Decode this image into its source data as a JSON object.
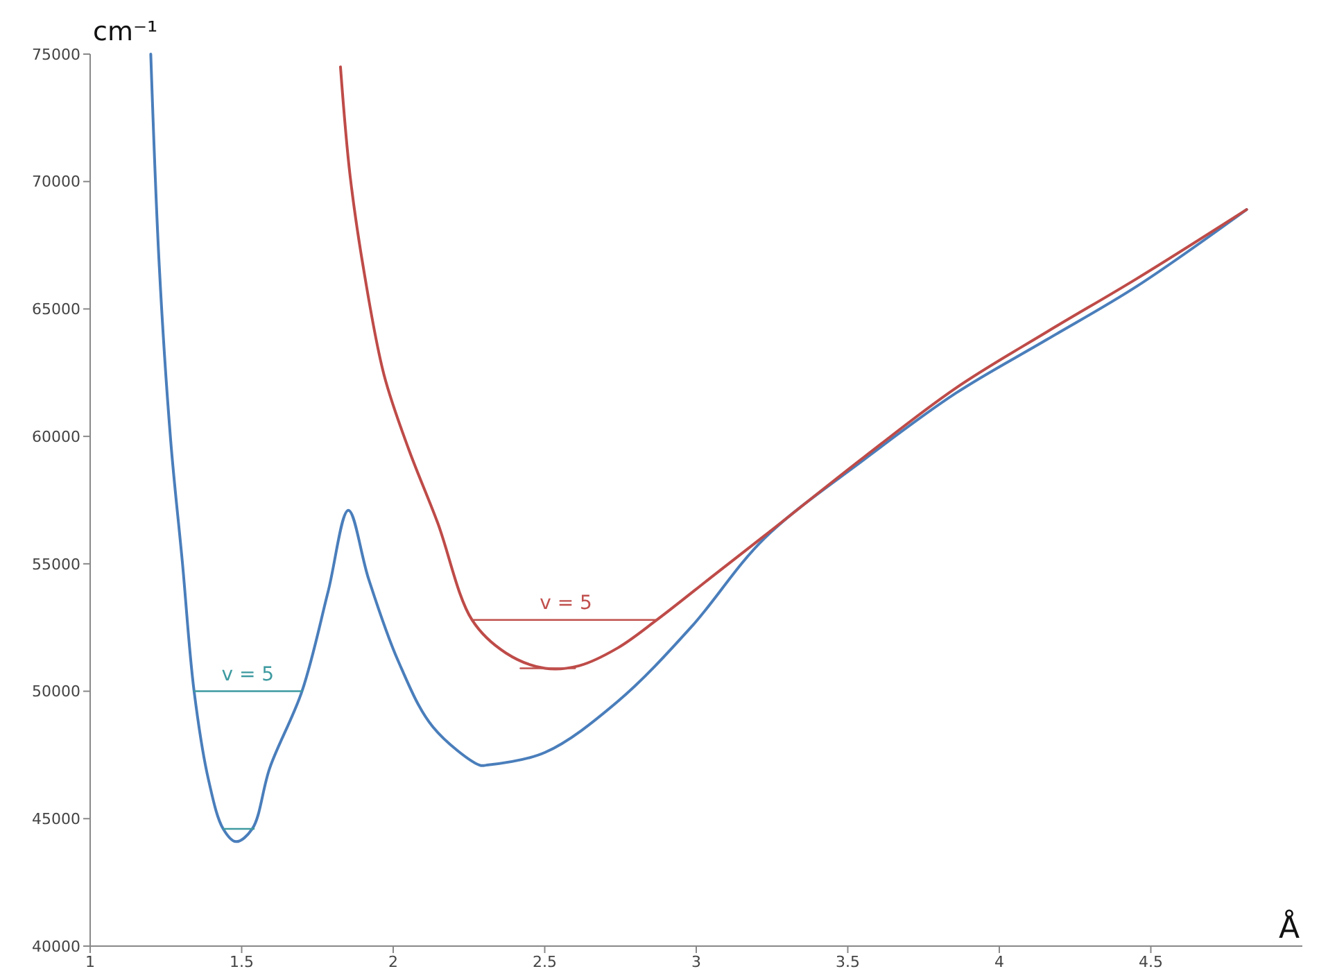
{
  "chart_data": {
    "type": "line",
    "xlabel": "Å",
    "ylabel": "cm⁻¹",
    "xlim": [
      1,
      5
    ],
    "ylim": [
      40000,
      75000
    ],
    "xticks": [
      1,
      1.5,
      2,
      2.5,
      3,
      3.5,
      4,
      4.5
    ],
    "yticks": [
      40000,
      45000,
      50000,
      55000,
      60000,
      65000,
      70000,
      75000
    ],
    "grid": false,
    "marker": "none",
    "line_style": "solid",
    "series": [
      {
        "color": "#4a7ebb",
        "x": [
          1.2,
          1.228,
          1.266,
          1.304,
          1.343,
          1.391,
          1.439,
          1.481,
          1.535,
          1.593,
          1.699,
          1.785,
          1.852,
          1.919,
          2.016,
          2.131,
          2.285,
          2.308,
          2.501,
          2.741,
          2.982,
          3.225,
          3.555,
          3.857,
          4.157,
          4.455,
          4.816
        ],
        "values": [
          75000,
          66700,
          59800,
          55100,
          50000,
          46500,
          44600,
          44100,
          44600,
          47000,
          50000,
          53900,
          57100,
          54400,
          51200,
          48600,
          47100,
          47100,
          47600,
          49600,
          52500,
          56000,
          59100,
          61700,
          63800,
          65900,
          68900
        ]
      },
      {
        "color": "#be4b48",
        "x": [
          1.826,
          1.858,
          1.906,
          1.97,
          2.051,
          2.147,
          2.26,
          2.372,
          2.501,
          2.613,
          2.741,
          2.87,
          3.063,
          3.225,
          3.555,
          3.857,
          4.157,
          4.455,
          4.816
        ],
        "values": [
          74500,
          70200,
          66300,
          62400,
          59500,
          56600,
          52800,
          51500,
          50900,
          51000,
          51700,
          52800,
          54600,
          56100,
          59200,
          61900,
          64100,
          66200,
          68900
        ]
      },
      {
        "color": "#3d9aa0",
        "x": [
          1.343,
          1.699
        ],
        "values": [
          50000,
          50000
        ]
      },
      {
        "color": "#3d9aa0",
        "x": [
          1.44,
          1.54
        ],
        "values": [
          44600,
          44600
        ]
      },
      {
        "color": "#c0504d",
        "x": [
          2.26,
          2.87
        ],
        "values": [
          52800,
          52800
        ]
      },
      {
        "color": "#c0504d",
        "x": [
          2.42,
          2.6
        ],
        "values": [
          50900,
          50900
        ]
      }
    ],
    "annotations": [
      {
        "text": "v = 5",
        "x": 1.52,
        "y": 50000
      },
      {
        "text": "v = 5",
        "x": 2.57,
        "y": 52800
      }
    ]
  }
}
